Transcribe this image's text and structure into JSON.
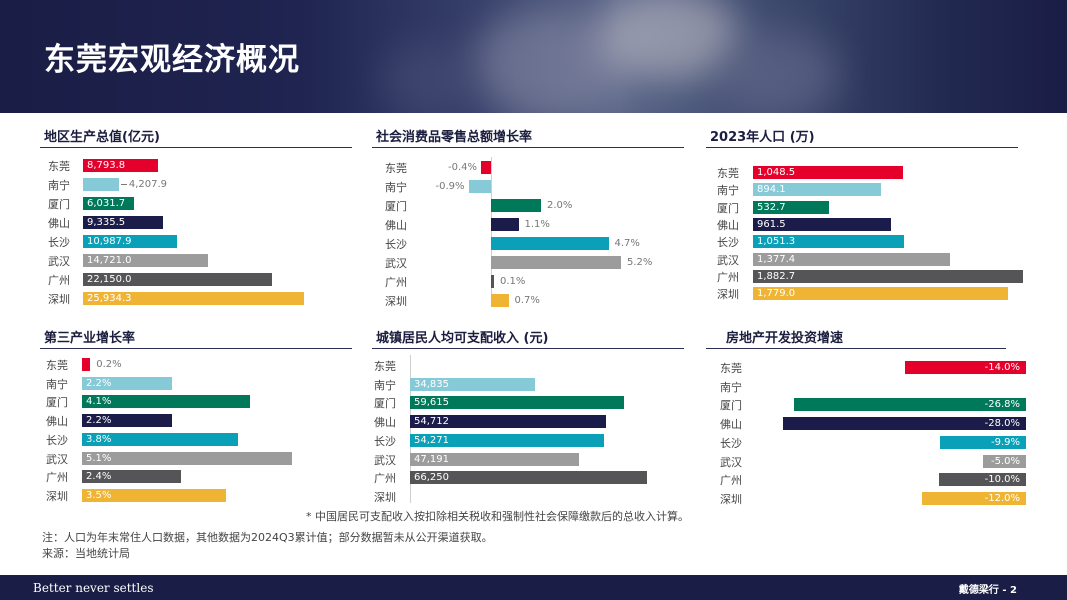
{
  "page": {
    "title": "东莞宏观经济概况"
  },
  "colors": {
    "东莞": "#e4002b",
    "南宁": "#86cad8",
    "厦门": "#00795a",
    "佛山": "#1c1c4a",
    "长沙": "#0aa0b8",
    "武汉": "#9c9c9c",
    "广州": "#555558",
    "深圳": "#f0b434"
  },
  "chart_data": [
    {
      "type": "bar",
      "title": "地区生产总值(亿元)",
      "categories": [
        "东莞",
        "南宁",
        "厦门",
        "佛山",
        "长沙",
        "武汉",
        "广州",
        "深圳"
      ],
      "values": [
        8793.8,
        4207.9,
        6031.7,
        9335.5,
        10987.9,
        14721.0,
        22150.0,
        25934.3
      ],
      "labels": [
        "8,793.8",
        "4,207.9",
        "6,031.7",
        "9,335.5",
        "10,987.9",
        "14,721.0",
        "22,150.0",
        "25,934.3"
      ],
      "xlim": [
        0,
        27000
      ]
    },
    {
      "type": "bar",
      "title": "社会消费品零售总额增长率",
      "categories": [
        "东莞",
        "南宁",
        "厦门",
        "佛山",
        "长沙",
        "武汉",
        "广州",
        "深圳"
      ],
      "values": [
        -0.4,
        -0.9,
        2.0,
        1.1,
        4.7,
        5.2,
        0.1,
        0.7
      ],
      "labels": [
        "-0.4%",
        "-0.9%",
        "2.0%",
        "1.1%",
        "4.7%",
        "5.2%",
        "0.1%",
        "0.7%"
      ],
      "xlim": [
        -1.5,
        5.5
      ]
    },
    {
      "type": "bar",
      "title": "2023年人口 (万)",
      "categories": [
        "东莞",
        "南宁",
        "厦门",
        "佛山",
        "长沙",
        "武汉",
        "广州",
        "深圳"
      ],
      "values": [
        1048.5,
        894.1,
        532.7,
        961.5,
        1051.3,
        1377.4,
        1882.7,
        1779.0
      ],
      "labels": [
        "1,048.5",
        "894.1",
        "532.7",
        "961.5",
        "1,051.3",
        "1,377.4",
        "1,882.7",
        "1,779.0"
      ],
      "xlim": [
        0,
        1900
      ]
    },
    {
      "type": "bar",
      "title": "第三产业增长率",
      "categories": [
        "东莞",
        "南宁",
        "厦门",
        "佛山",
        "长沙",
        "武汉",
        "广州",
        "深圳"
      ],
      "values": [
        0.2,
        2.2,
        4.1,
        2.2,
        3.8,
        5.1,
        2.4,
        3.5
      ],
      "labels": [
        "0.2%",
        "2.2%",
        "4.1%",
        "2.2%",
        "3.8%",
        "5.1%",
        "2.4%",
        "3.5%"
      ],
      "xlim": [
        0,
        5.5
      ]
    },
    {
      "type": "bar",
      "title": "城镇居民人均可支配收入 (元)",
      "categories": [
        "东莞",
        "南宁",
        "厦门",
        "佛山",
        "长沙",
        "武汉",
        "广州",
        "深圳"
      ],
      "values": [
        null,
        34835,
        59615,
        54712,
        54271,
        47191,
        66250,
        null
      ],
      "labels": [
        "",
        "34,835",
        "59,615",
        "54,712",
        "54,271",
        "47,191",
        "66,250",
        ""
      ],
      "xlim": [
        0,
        72000
      ]
    },
    {
      "type": "bar",
      "title": "房地产开发投资增速",
      "categories": [
        "东莞",
        "南宁",
        "厦门",
        "佛山",
        "长沙",
        "武汉",
        "广州",
        "深圳"
      ],
      "values": [
        -14.0,
        null,
        -26.8,
        -28.0,
        -9.9,
        -5.0,
        -10.0,
        -12.0
      ],
      "labels": [
        "-14.0%",
        "",
        "-26.8%",
        "-28.0%",
        "-9.9%",
        "-5.0%",
        "-10.0%",
        "-12.0%"
      ],
      "xlim": [
        -30,
        0
      ]
    }
  ],
  "notes": {
    "income_footnote": "* 中国居民可支配收入按扣除相关税收和强制性社会保障缴款后的总收入计算。",
    "note": "注：人口为年末常住人口数据，其他数据为2024Q3累计值；部分数据暂未从公开渠道获取。",
    "source": "来源：当地统计局"
  },
  "footer": {
    "tagline": "Better never settles",
    "page_ref": "戴德梁行 - 2"
  }
}
